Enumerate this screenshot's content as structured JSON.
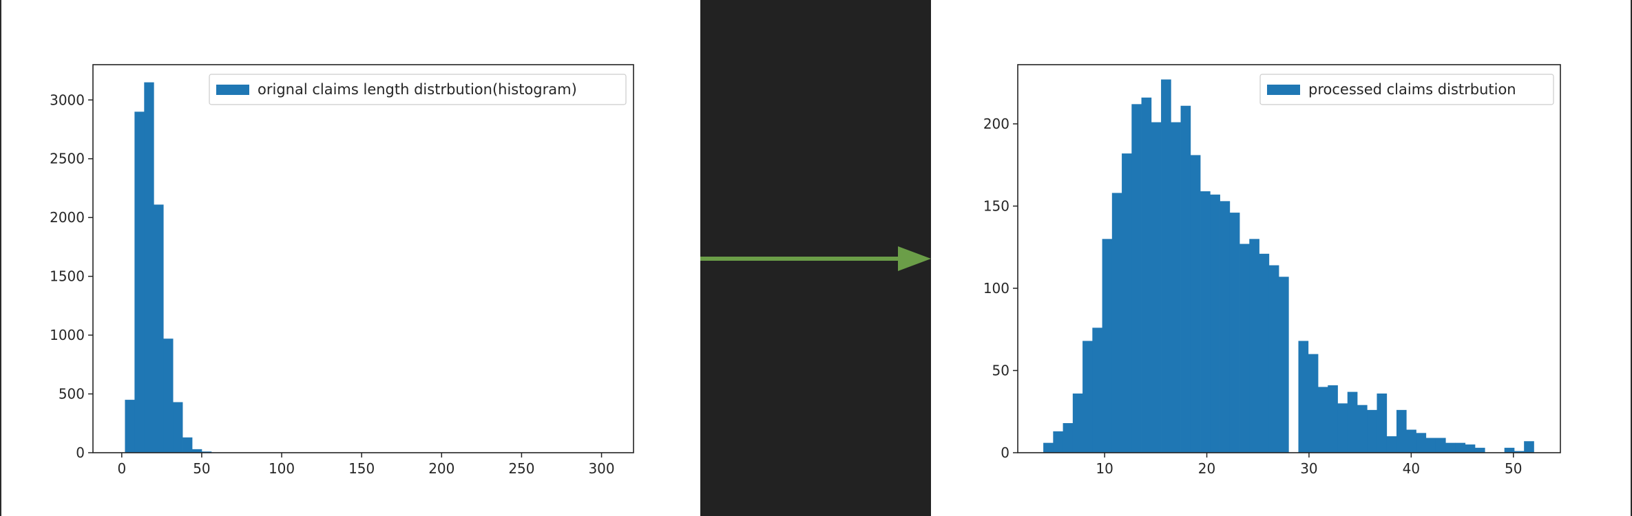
{
  "colors": {
    "bar": "#1f77b4",
    "arrow": "#6b9e48",
    "background": "#222222",
    "axis": "#222222"
  },
  "chart_data": [
    {
      "type": "bar",
      "title": "",
      "xlabel": "",
      "ylabel": "",
      "grid": false,
      "legend_placement": "top-right",
      "xlim": [
        -18,
        320
      ],
      "ylim": [
        0,
        3300
      ],
      "xticks": [
        0,
        50,
        100,
        150,
        200,
        250,
        300
      ],
      "yticks": [
        0,
        500,
        1000,
        1500,
        2000,
        2500,
        3000
      ],
      "bin_width": 6,
      "series": [
        {
          "name": "orignal claims length distrbution(histogram)",
          "bin_starts": [
            2,
            8,
            14,
            20,
            26,
            32,
            38,
            44,
            50,
            56
          ],
          "values": [
            450,
            2900,
            3150,
            2110,
            970,
            430,
            130,
            30,
            10,
            3
          ]
        }
      ]
    },
    {
      "type": "bar",
      "title": "",
      "xlabel": "",
      "ylabel": "",
      "grid": false,
      "legend_placement": "top-right",
      "xlim": [
        1.5,
        54.6
      ],
      "ylim": [
        0,
        236
      ],
      "xticks": [
        10,
        20,
        30,
        40,
        50
      ],
      "yticks": [
        0,
        50,
        100,
        150,
        200
      ],
      "bin_width": 0.96,
      "series": [
        {
          "name": "processed claims distrbution",
          "bin_starts": [
            4.0,
            4.96,
            5.92,
            6.88,
            7.84,
            8.8,
            9.76,
            10.72,
            11.68,
            12.64,
            13.6,
            14.56,
            15.52,
            16.48,
            17.44,
            18.4,
            19.36,
            20.32,
            21.28,
            22.24,
            23.2,
            24.16,
            25.12,
            26.08,
            27.04,
            28.0,
            28.96,
            29.92,
            30.88,
            31.84,
            32.8,
            33.76,
            34.72,
            35.68,
            36.64,
            37.6,
            38.56,
            39.52,
            40.48,
            41.44,
            42.4,
            43.36,
            44.32,
            45.28,
            46.24,
            47.2,
            48.16,
            49.12,
            50.08,
            51.04
          ],
          "values": [
            6,
            13,
            18,
            36,
            68,
            76,
            130,
            158,
            182,
            212,
            216,
            201,
            227,
            201,
            211,
            181,
            159,
            157,
            153,
            146,
            127,
            130,
            121,
            114,
            107,
            0,
            68,
            60,
            40,
            41,
            30,
            37,
            29,
            26,
            36,
            10,
            26,
            14,
            12,
            9,
            9,
            6,
            6,
            5,
            3,
            0,
            0,
            3,
            1,
            7
          ]
        }
      ]
    }
  ]
}
